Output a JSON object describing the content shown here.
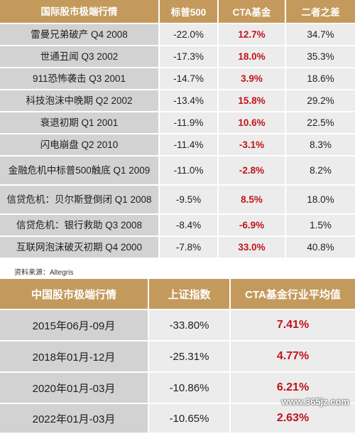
{
  "table1": {
    "headers": [
      "国际股市极端行情",
      "标普500",
      "CTA基金",
      "二者之差"
    ],
    "rows": [
      {
        "event": "雷曼兄弟破产 Q4 2008",
        "sp500": "-22.0%",
        "cta": "12.7%",
        "diff": "34.7%"
      },
      {
        "event": "世通丑闻 Q3 2002",
        "sp500": "-17.3%",
        "cta": "18.0%",
        "diff": "35.3%"
      },
      {
        "event": "911恐怖袭击 Q3 2001",
        "sp500": "-14.7%",
        "cta": "3.9%",
        "diff": "18.6%"
      },
      {
        "event": "科技泡沫中晚期 Q2 2002",
        "sp500": "-13.4%",
        "cta": "15.8%",
        "diff": "29.2%"
      },
      {
        "event": "衰退初期  Q1 2001",
        "sp500": "-11.9%",
        "cta": "10.6%",
        "diff": "22.5%"
      },
      {
        "event": "闪电崩盘 Q2 2010",
        "sp500": "-11.4%",
        "cta": "-3.1%",
        "diff": "8.3%"
      },
      {
        "event": "金融危机中标普500触底 Q1 2009",
        "sp500": "-11.0%",
        "cta": "-2.8%",
        "diff": "8.2%"
      },
      {
        "event": "信贷危机：贝尔斯登倒闭 Q1 2008",
        "sp500": "-9.5%",
        "cta": "8.5%",
        "diff": "18.0%"
      },
      {
        "event": "信贷危机：银行救助 Q3 2008",
        "sp500": "-8.4%",
        "cta": "-6.9%",
        "diff": "1.5%"
      },
      {
        "event": "互联网泡沫破灭初期 Q4 2000",
        "sp500": "-7.8%",
        "cta": "33.0%",
        "diff": "40.8%"
      }
    ]
  },
  "source": "资料来源：Altegris",
  "table2": {
    "headers": [
      "中国股市极端行情",
      "上证指数",
      "CTA基金行业平均值"
    ],
    "rows": [
      {
        "period": "2015年06月-09月",
        "index": "-33.80%",
        "cta": "7.41%"
      },
      {
        "period": "2018年01月-12月",
        "index": "-25.31%",
        "cta": "4.77%"
      },
      {
        "period": "2020年01月-03月",
        "index": "-10.86%",
        "cta": "6.21%"
      },
      {
        "period": "2022年01月-03月",
        "index": "-10.65%",
        "cta": "2.63%"
      }
    ]
  },
  "watermark": "www.365jz.com",
  "colors": {
    "header_bg": "#c49a5c",
    "highlight": "#c0141c",
    "label_bg": "#d2d2d2",
    "value_bg": "#ececec"
  }
}
